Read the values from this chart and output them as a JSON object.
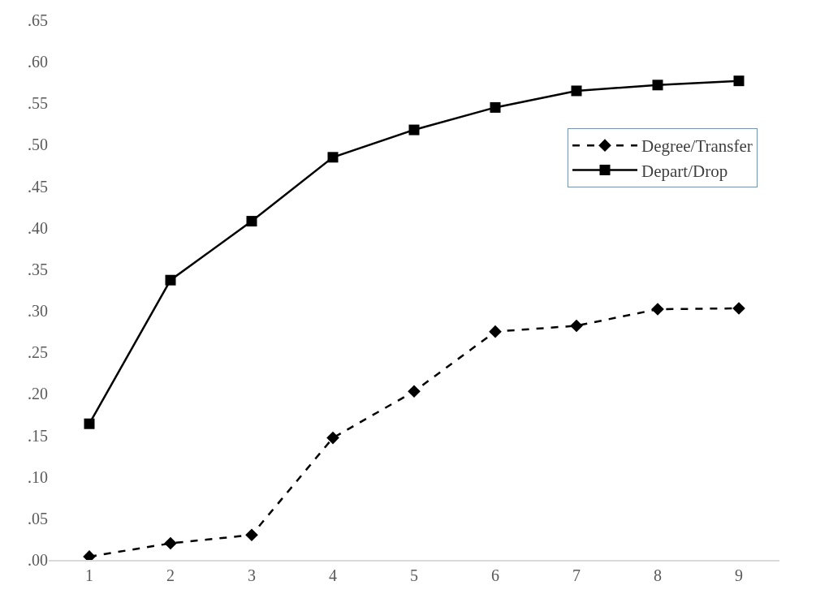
{
  "chart_data": {
    "type": "line",
    "categories": [
      "1",
      "2",
      "3",
      "4",
      "5",
      "6",
      "7",
      "8",
      "9"
    ],
    "series": [
      {
        "name": "Degree/Transfer",
        "color": "#000000",
        "marker": "diamond",
        "line_style": "dashed",
        "values": [
          0.004,
          0.02,
          0.03,
          0.147,
          0.203,
          0.275,
          0.282,
          0.302,
          0.303
        ]
      },
      {
        "name": "Depart/Drop",
        "color": "#000000",
        "marker": "square",
        "line_style": "solid",
        "values": [
          0.164,
          0.337,
          0.408,
          0.485,
          0.518,
          0.545,
          0.565,
          0.572,
          0.577
        ]
      }
    ],
    "ylim": [
      0,
      0.65
    ],
    "yticks": [
      {
        "value": 0,
        "label": ".00"
      },
      {
        "value": 0.05,
        "label": ".05"
      },
      {
        "value": 0.1,
        "label": ".10"
      },
      {
        "value": 0.15,
        "label": ".15"
      },
      {
        "value": 0.2,
        "label": ".20"
      },
      {
        "value": 0.25,
        "label": ".25"
      },
      {
        "value": 0.3,
        "label": ".30"
      },
      {
        "value": 0.35,
        "label": ".35"
      },
      {
        "value": 0.4,
        "label": ".40"
      },
      {
        "value": 0.45,
        "label": ".45"
      },
      {
        "value": 0.5,
        "label": ".50"
      },
      {
        "value": 0.55,
        "label": ".55"
      },
      {
        "value": 0.6,
        "label": ".60"
      },
      {
        "value": 0.65,
        "label": ".65"
      }
    ],
    "legend": "top right"
  }
}
